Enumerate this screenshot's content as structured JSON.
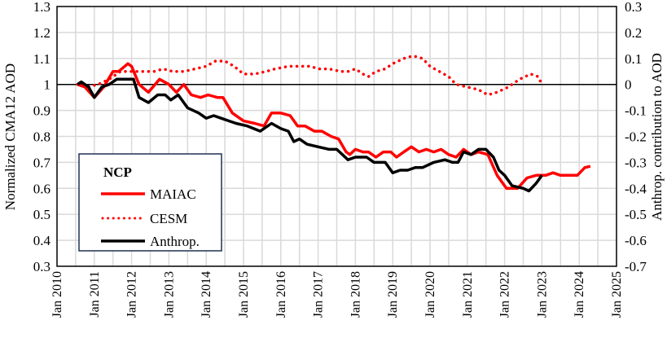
{
  "chart_data": {
    "type": "line",
    "title": "",
    "xlabel": "",
    "ylabel": "Normalized CMA12 AOD",
    "y2label": "Anthrop. contribution to AOD",
    "xlim": [
      2010,
      2025
    ],
    "ylim": [
      0.3,
      1.3
    ],
    "y2lim": [
      -0.7,
      0.3
    ],
    "grid": true,
    "x_ticks": [
      "Jan 2010",
      "Jan 2011",
      "Jan 2012",
      "Jan 2013",
      "Jan 2014",
      "Jan 2015",
      "Jan 2016",
      "Jan 2017",
      "Jan 2018",
      "Jan 2019",
      "Jan 2020",
      "Jan 2021",
      "Jan 2022",
      "Jan 2023",
      "Jan 2024",
      "Jan 2025"
    ],
    "y_ticks": [
      "0.3",
      "0.4",
      "0.5",
      "0.6",
      "0.7",
      "0.8",
      "0.9",
      "1",
      "1.1",
      "1.2",
      "1.3"
    ],
    "y2_ticks": [
      "-0.7",
      "-0.6",
      "-0.5",
      "-0.4",
      "-0.3",
      "-0.2",
      "-0.1",
      "0",
      "0.1",
      "0.2",
      "0.3"
    ],
    "legend": {
      "title": "NCP",
      "placement": "bottom-left"
    },
    "reference_line": {
      "axis": "y",
      "value": 1.0
    },
    "series": [
      {
        "name": "MAIAC",
        "axis": "left",
        "color": "#ff0000",
        "style": "solid",
        "x": [
          2010.55,
          2010.75,
          2011.0,
          2011.25,
          2011.5,
          2011.65,
          2011.9,
          2012.0,
          2012.2,
          2012.45,
          2012.75,
          2013.0,
          2013.2,
          2013.4,
          2013.6,
          2013.85,
          2014.05,
          2014.3,
          2014.45,
          2014.7,
          2015.0,
          2015.3,
          2015.55,
          2015.75,
          2016.0,
          2016.25,
          2016.45,
          2016.65,
          2016.9,
          2017.1,
          2017.35,
          2017.55,
          2017.75,
          2017.85,
          2018.0,
          2018.2,
          2018.35,
          2018.55,
          2018.75,
          2018.95,
          2019.1,
          2019.3,
          2019.5,
          2019.7,
          2019.9,
          2020.1,
          2020.3,
          2020.5,
          2020.7,
          2020.9,
          2021.1,
          2021.3,
          2021.55,
          2021.8,
          2022.05,
          2022.35,
          2022.6,
          2022.85,
          2023.1,
          2023.3,
          2023.5,
          2023.7,
          2023.95,
          2024.15,
          2024.3
        ],
        "y": [
          1.0,
          0.99,
          0.95,
          0.99,
          1.05,
          1.05,
          1.08,
          1.07,
          1.0,
          0.97,
          1.02,
          1.0,
          0.97,
          1.0,
          0.96,
          0.95,
          0.96,
          0.95,
          0.95,
          0.89,
          0.86,
          0.85,
          0.84,
          0.89,
          0.89,
          0.88,
          0.84,
          0.84,
          0.82,
          0.82,
          0.8,
          0.79,
          0.74,
          0.73,
          0.75,
          0.74,
          0.74,
          0.72,
          0.74,
          0.74,
          0.72,
          0.74,
          0.76,
          0.74,
          0.75,
          0.74,
          0.75,
          0.73,
          0.72,
          0.75,
          0.73,
          0.74,
          0.73,
          0.65,
          0.6,
          0.6,
          0.64,
          0.65,
          0.65,
          0.66,
          0.65,
          0.65,
          0.65,
          0.68,
          0.685
        ]
      },
      {
        "name": "CESM",
        "axis": "right",
        "color": "#ff0000",
        "style": "dotted",
        "x": [
          2010.55,
          2010.8,
          2011.1,
          2011.4,
          2011.7,
          2012.0,
          2012.3,
          2012.6,
          2012.85,
          2013.1,
          2013.4,
          2013.7,
          2014.0,
          2014.25,
          2014.5,
          2014.75,
          2015.0,
          2015.3,
          2015.6,
          2015.85,
          2016.2,
          2016.5,
          2016.8,
          2017.0,
          2017.3,
          2017.6,
          2017.8,
          2018.0,
          2018.2,
          2018.35,
          2018.55,
          2018.8,
          2019.0,
          2019.3,
          2019.55,
          2019.8,
          2020.0,
          2020.25,
          2020.5,
          2020.7,
          2021.0,
          2021.3,
          2021.55,
          2021.8,
          2022.1,
          2022.4,
          2022.7,
          2022.9,
          2023.0
        ],
        "y": [
          0.0,
          -0.01,
          0.0,
          0.02,
          0.05,
          0.05,
          0.05,
          0.05,
          0.06,
          0.05,
          0.05,
          0.06,
          0.07,
          0.09,
          0.09,
          0.07,
          0.04,
          0.04,
          0.05,
          0.06,
          0.07,
          0.07,
          0.07,
          0.06,
          0.06,
          0.05,
          0.05,
          0.06,
          0.04,
          0.03,
          0.05,
          0.06,
          0.08,
          0.1,
          0.11,
          0.1,
          0.07,
          0.05,
          0.03,
          0.0,
          -0.01,
          -0.02,
          -0.04,
          -0.03,
          -0.01,
          0.02,
          0.04,
          0.03,
          0.0
        ]
      },
      {
        "name": "Anthrop.",
        "axis": "left",
        "color": "#000000",
        "style": "solid",
        "x": [
          2010.55,
          2010.65,
          2010.85,
          2011.0,
          2011.2,
          2011.4,
          2011.6,
          2011.85,
          2012.05,
          2012.2,
          2012.45,
          2012.7,
          2012.9,
          2013.05,
          2013.25,
          2013.5,
          2013.8,
          2014.0,
          2014.2,
          2014.4,
          2014.6,
          2014.8,
          2015.1,
          2015.45,
          2015.75,
          2016.0,
          2016.2,
          2016.35,
          2016.5,
          2016.7,
          2017.0,
          2017.3,
          2017.5,
          2017.8,
          2018.0,
          2018.3,
          2018.5,
          2018.8,
          2019.0,
          2019.2,
          2019.4,
          2019.6,
          2019.8,
          2020.1,
          2020.4,
          2020.6,
          2020.75,
          2020.9,
          2021.1,
          2021.3,
          2021.5,
          2021.7,
          2021.85,
          2022.0,
          2022.2,
          2022.5,
          2022.65,
          2022.85,
          2023.0
        ],
        "y": [
          1.0,
          1.01,
          0.99,
          0.95,
          0.99,
          1.0,
          1.02,
          1.02,
          1.02,
          0.95,
          0.93,
          0.96,
          0.96,
          0.94,
          0.96,
          0.91,
          0.89,
          0.87,
          0.88,
          0.87,
          0.86,
          0.85,
          0.84,
          0.82,
          0.85,
          0.83,
          0.82,
          0.78,
          0.79,
          0.77,
          0.76,
          0.75,
          0.75,
          0.71,
          0.72,
          0.72,
          0.7,
          0.7,
          0.66,
          0.67,
          0.67,
          0.68,
          0.68,
          0.7,
          0.71,
          0.7,
          0.7,
          0.74,
          0.73,
          0.75,
          0.75,
          0.72,
          0.67,
          0.65,
          0.61,
          0.6,
          0.59,
          0.62,
          0.65
        ]
      }
    ]
  }
}
